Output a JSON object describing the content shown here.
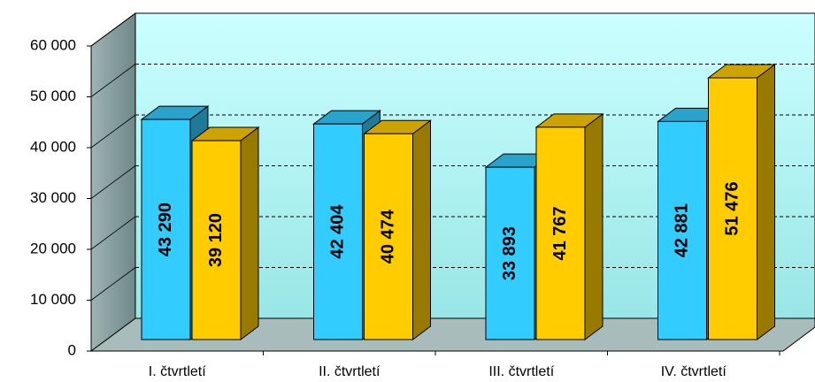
{
  "chart_data": {
    "type": "bar3d",
    "categories": [
      "I. čtvrtletí",
      "II. čtvrtletí",
      "III. čtvrtletí",
      "IV. čtvrtletí"
    ],
    "series": [
      {
        "color": "#33ccff",
        "values": [
          43290,
          42404,
          33893,
          42881
        ],
        "value_labels": [
          "43 290",
          "42 404",
          "33 893",
          "42 881"
        ]
      },
      {
        "color": "#ffcc00",
        "values": [
          39120,
          40474,
          41767,
          51476
        ],
        "value_labels": [
          "39 120",
          "40 474",
          "41 767",
          "51 476"
        ]
      }
    ],
    "ylim": [
      0,
      60000
    ],
    "yticks": [
      0,
      {
        "value": 10000,
        "label": "10 000"
      },
      {
        "value": 20000,
        "label": "20 000"
      },
      {
        "value": 30000,
        "label": "30 000"
      },
      {
        "value": 40000,
        "label": "40 000"
      },
      {
        "value": 50000,
        "label": "50 000"
      },
      {
        "value": 60000,
        "label": "60 000"
      }
    ],
    "grid": true
  }
}
